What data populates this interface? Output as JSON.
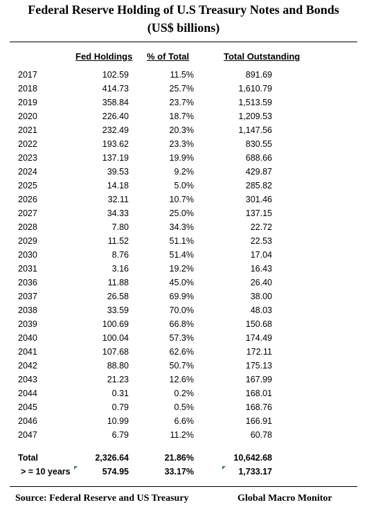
{
  "title": {
    "line1": "Federal Reserve Holding of U.S Treasury Notes and Bonds",
    "line2": "(US$ billions)"
  },
  "columns": [
    "Fed Holdings",
    "% of Total",
    "Total Outstanding"
  ],
  "rows": [
    {
      "year": "2017",
      "fed": "102.59",
      "pct": "11.5%",
      "total": "891.69"
    },
    {
      "year": "2018",
      "fed": "414.73",
      "pct": "25.7%",
      "total": "1,610.79"
    },
    {
      "year": "2019",
      "fed": "358.84",
      "pct": "23.7%",
      "total": "1,513.59"
    },
    {
      "year": "2020",
      "fed": "226.40",
      "pct": "18.7%",
      "total": "1,209.53"
    },
    {
      "year": "2021",
      "fed": "232.49",
      "pct": "20.3%",
      "total": "1,147.56"
    },
    {
      "year": "2022",
      "fed": "193.62",
      "pct": "23.3%",
      "total": "830.55"
    },
    {
      "year": "2023",
      "fed": "137.19",
      "pct": "19.9%",
      "total": "688.66"
    },
    {
      "year": "2024",
      "fed": "39.53",
      "pct": "9.2%",
      "total": "429.87"
    },
    {
      "year": "2025",
      "fed": "14.18",
      "pct": "5.0%",
      "total": "285.82"
    },
    {
      "year": "2026",
      "fed": "32.11",
      "pct": "10.7%",
      "total": "301.46"
    },
    {
      "year": "2027",
      "fed": "34.33",
      "pct": "25.0%",
      "total": "137.15"
    },
    {
      "year": "2028",
      "fed": "7.80",
      "pct": "34.3%",
      "total": "22.72"
    },
    {
      "year": "2029",
      "fed": "11.52",
      "pct": "51.1%",
      "total": "22.53"
    },
    {
      "year": "2030",
      "fed": "8.76",
      "pct": "51.4%",
      "total": "17.04"
    },
    {
      "year": "2031",
      "fed": "3.16",
      "pct": "19.2%",
      "total": "16.43"
    },
    {
      "year": "2036",
      "fed": "11.88",
      "pct": "45.0%",
      "total": "26.40"
    },
    {
      "year": "2037",
      "fed": "26.58",
      "pct": "69.9%",
      "total": "38.00"
    },
    {
      "year": "2038",
      "fed": "33.59",
      "pct": "70.0%",
      "total": "48.03"
    },
    {
      "year": "2039",
      "fed": "100.69",
      "pct": "66.8%",
      "total": "150.68"
    },
    {
      "year": "2040",
      "fed": "100.04",
      "pct": "57.3%",
      "total": "174.49"
    },
    {
      "year": "2041",
      "fed": "107.68",
      "pct": "62.6%",
      "total": "172.11"
    },
    {
      "year": "2042",
      "fed": "88.80",
      "pct": "50.7%",
      "total": "175.13"
    },
    {
      "year": "2043",
      "fed": "21.23",
      "pct": "12.6%",
      "total": "167.99"
    },
    {
      "year": "2044",
      "fed": "0.31",
      "pct": "0.2%",
      "total": "168.01"
    },
    {
      "year": "2045",
      "fed": "0.79",
      "pct": "0.5%",
      "total": "168.76"
    },
    {
      "year": "2046",
      "fed": "10.99",
      "pct": "6.6%",
      "total": "166.91"
    },
    {
      "year": "2047",
      "fed": "6.79",
      "pct": "11.2%",
      "total": "60.78"
    }
  ],
  "total_row": {
    "label": "Total",
    "fed": "2,326.64",
    "pct": "21.86%",
    "total": "10,642.68"
  },
  "ten_year_row": {
    "label": "> = 10 years",
    "fed": "574.95",
    "pct": "33.17%",
    "total": "1,733.17"
  },
  "footer": {
    "source": "Source:  Federal Reserve and US Treasury",
    "brand": "Global Macro Monitor"
  },
  "colors": {
    "marker": "#2e8b2e"
  }
}
